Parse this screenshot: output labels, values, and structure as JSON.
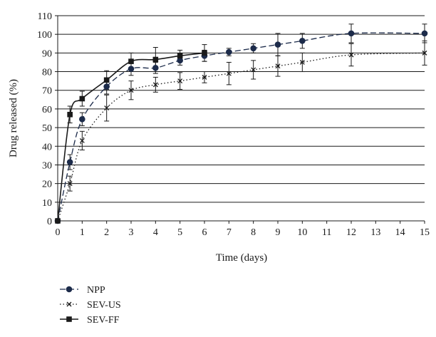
{
  "chart_data": {
    "type": "line",
    "title": "",
    "xlabel": "Time (days)",
    "ylabel": "Drug released (%)",
    "xlim": [
      0,
      15
    ],
    "ylim": [
      0,
      110
    ],
    "x_ticks": [
      0,
      1,
      2,
      3,
      4,
      5,
      6,
      7,
      8,
      9,
      10,
      11,
      12,
      13,
      14,
      15
    ],
    "y_ticks": [
      0,
      10,
      20,
      30,
      40,
      50,
      60,
      70,
      80,
      90,
      100,
      110
    ],
    "grid": "horizontal",
    "legend_position": "bottom-left",
    "series": [
      {
        "name": "NPP",
        "line_style": "dashed",
        "marker": "circle",
        "color": "#1c2b4a",
        "x": [
          0,
          0.5,
          1,
          2,
          3,
          4,
          5,
          6,
          7,
          8,
          9,
          10,
          12,
          15
        ],
        "y": [
          0,
          31.5,
          54.5,
          72,
          81.5,
          82,
          86,
          88.5,
          90.5,
          92.5,
          94.5,
          96.5,
          100.5,
          100.5
        ],
        "err": [
          0,
          4,
          3.5,
          4,
          3.5,
          3,
          2.5,
          3,
          2,
          2.5,
          6,
          4,
          5,
          5
        ]
      },
      {
        "name": "SEV-US",
        "line_style": "dotted",
        "marker": "x",
        "color": "#1a1a1a",
        "x": [
          0,
          0.5,
          1,
          2,
          3,
          4,
          5,
          6,
          7,
          8,
          9,
          10,
          12,
          15
        ],
        "y": [
          0,
          20,
          43,
          60.5,
          70,
          73,
          75,
          77,
          79,
          81,
          83,
          85,
          89,
          90
        ],
        "err": [
          0,
          4,
          5,
          7,
          5,
          4,
          4.5,
          3,
          6,
          5,
          5.5,
          5,
          6,
          6.5
        ]
      },
      {
        "name": "SEV-FF",
        "line_style": "solid",
        "marker": "square",
        "color": "#1a1a1a",
        "x": [
          0,
          0.5,
          1,
          2,
          3,
          4,
          5,
          6
        ],
        "y": [
          0,
          57,
          65.5,
          75.5,
          85.5,
          86.5,
          88.5,
          90
        ],
        "err": [
          0,
          4.5,
          4,
          5,
          4.5,
          6.5,
          3,
          4.5
        ]
      }
    ]
  }
}
